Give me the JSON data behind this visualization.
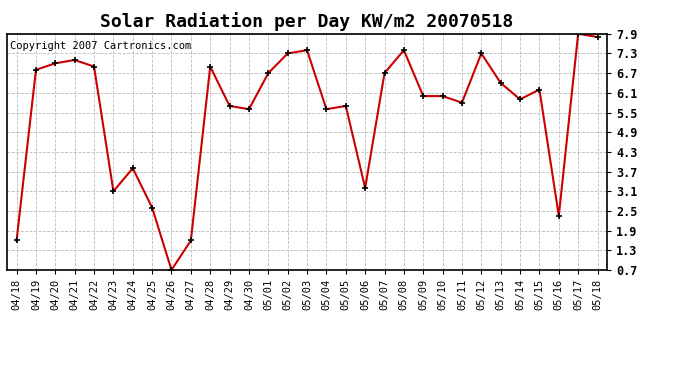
{
  "title": "Solar Radiation per Day KW/m2 20070518",
  "copyright": "Copyright 2007 Cartronics.com",
  "x_labels": [
    "04/18",
    "04/19",
    "04/20",
    "04/21",
    "04/22",
    "04/23",
    "04/24",
    "04/25",
    "04/26",
    "04/27",
    "04/28",
    "04/29",
    "04/30",
    "05/01",
    "05/02",
    "05/03",
    "05/04",
    "05/05",
    "05/06",
    "05/07",
    "05/08",
    "05/09",
    "05/10",
    "05/11",
    "05/12",
    "05/13",
    "05/14",
    "05/15",
    "05/16",
    "05/17",
    "05/18"
  ],
  "y_values": [
    1.6,
    6.8,
    7.0,
    7.1,
    6.9,
    3.1,
    3.8,
    2.6,
    0.7,
    1.6,
    6.9,
    5.7,
    5.6,
    6.7,
    7.3,
    7.4,
    5.6,
    5.7,
    3.2,
    6.7,
    7.4,
    6.0,
    6.0,
    5.8,
    7.3,
    6.4,
    5.9,
    6.2,
    2.35,
    7.9,
    7.8
  ],
  "line_color": "#cc0000",
  "marker_color": "#000000",
  "bg_color": "#ffffff",
  "plot_bg_color": "#ffffff",
  "grid_color": "#bbbbbb",
  "y_ticks": [
    0.7,
    1.3,
    1.9,
    2.5,
    3.1,
    3.7,
    4.3,
    4.9,
    5.5,
    6.1,
    6.7,
    7.3,
    7.9
  ],
  "y_min": 0.7,
  "y_max": 7.9,
  "title_fontsize": 13,
  "copyright_fontsize": 7.5,
  "tick_fontsize": 7.5,
  "ytick_fontsize": 8.5
}
